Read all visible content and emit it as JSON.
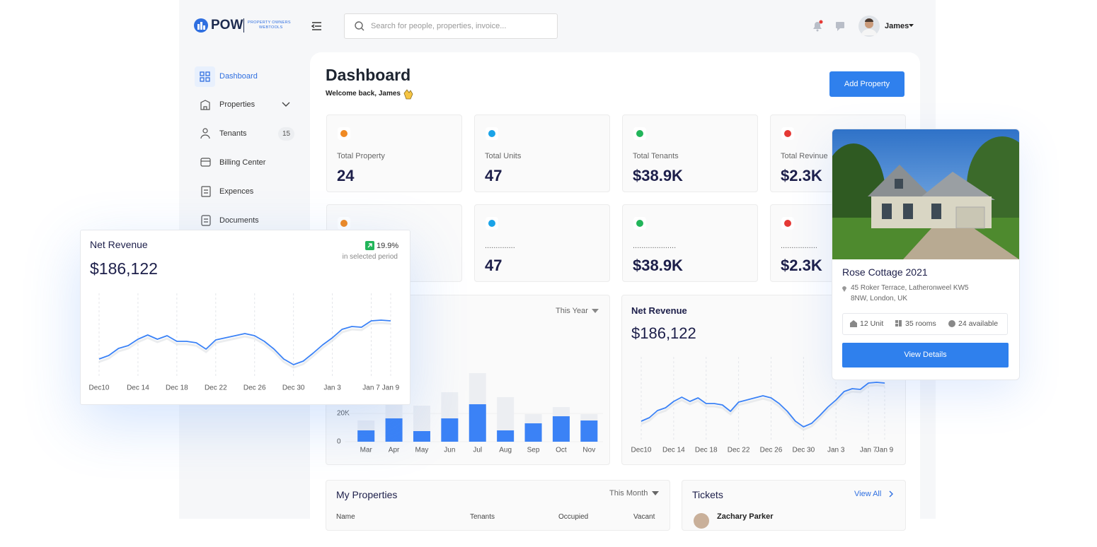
{
  "header": {
    "logo": "POW",
    "logo_tagline": [
      "PROPERTY OWNERS",
      "WEBTOOLS"
    ],
    "search_placeholder": "Search for people, properties, invoice...",
    "user": "James"
  },
  "sidebar": [
    {
      "label": "Dashboard"
    },
    {
      "label": "Properties"
    },
    {
      "label": "Tenants",
      "badge": 15
    },
    {
      "label": "Billing Center"
    },
    {
      "label": "Expences"
    },
    {
      "label": "Documents"
    }
  ],
  "page": {
    "title": "Dashboard",
    "welcome": "Welcome back, James",
    "add_button": "Add Property"
  },
  "stats": [
    {
      "label": "Total Property",
      "value": 24
    },
    {
      "label": "Total Units",
      "value": 47
    },
    {
      "label": "Total Tenants",
      "value": "$38.9K"
    },
    {
      "label": "Total Revinue",
      "value": "$2.3K"
    }
  ],
  "stats_row2": [
    {
      "label": "..............",
      "value": 47
    },
    {
      "label": "....................",
      "value": "$38.9K"
    },
    {
      "label": ".................",
      "value": "$2.3K"
    }
  ],
  "bar_filter": "This Year",
  "chart_data": [
    {
      "type": "bar",
      "categories": [
        "Mar",
        "Apr",
        "May",
        "Jun",
        "Jul",
        "Aug",
        "Sep",
        "Oct",
        "Nov"
      ],
      "series": [
        {
          "color": "#eceef2",
          "values": [
            15000,
            26500,
            25500,
            35000,
            48500,
            31500,
            19500,
            24500,
            19500
          ]
        },
        {
          "color": "#3b82f6",
          "values": [
            8000,
            16500,
            7500,
            16500,
            26500,
            8000,
            13000,
            18000,
            15000
          ]
        }
      ],
      "ylim": [
        0,
        60000
      ],
      "yticks": [
        0,
        {
          "value": 20000,
          "label": "20K"
        }
      ],
      "grid": true
    },
    {
      "type": "line",
      "title": "Net Revenue",
      "total": "$186,122",
      "color": "#3b82f6",
      "ylim": [
        0,
        100
      ],
      "categories": [
        "Dec10",
        null,
        null,
        null,
        "Dec 14",
        null,
        null,
        null,
        "Dec 18",
        null,
        null,
        null,
        "Dec 22",
        null,
        null,
        null,
        "Dec 26",
        null,
        null,
        null,
        "Dec 30",
        null,
        null,
        null,
        "Jan 3",
        null,
        null,
        null,
        "Jan 7",
        null,
        "Jan 9"
      ],
      "values": [
        22,
        27,
        37,
        41,
        50,
        56,
        50,
        55,
        47,
        47,
        45,
        36,
        49,
        52,
        55,
        58,
        55,
        47,
        36,
        22,
        14,
        19,
        30,
        42,
        52,
        64,
        68,
        67,
        76,
        77,
        76
      ]
    },
    {
      "type": "line",
      "title": "Net Revenue",
      "total": "$186,122",
      "change": "19.9%",
      "change_note": "in selected period",
      "color": "#3b82f6",
      "ylim": [
        0,
        100
      ],
      "categories": [
        "Dec10",
        null,
        null,
        null,
        "Dec 14",
        null,
        null,
        null,
        "Dec 18",
        null,
        null,
        null,
        "Dec 22",
        null,
        null,
        null,
        "Dec 26",
        null,
        null,
        null,
        "Dec 30",
        null,
        null,
        null,
        "Jan 3",
        null,
        null,
        null,
        "Jan 7",
        null,
        "Jan 9"
      ],
      "values": [
        22,
        27,
        37,
        41,
        50,
        56,
        50,
        55,
        47,
        47,
        45,
        36,
        49,
        52,
        55,
        58,
        55,
        47,
        36,
        22,
        14,
        19,
        30,
        42,
        52,
        64,
        68,
        67,
        76,
        77,
        76
      ]
    }
  ],
  "property": {
    "title": "Rose Cottage 2021",
    "address": [
      "45 Roker Terrace, Latheronweel KW5",
      "8NW, London, UK"
    ],
    "features": [
      "12 Unit",
      "35 rooms",
      "24 available"
    ],
    "button": "View Details"
  },
  "my_properties": {
    "title": "My Properties",
    "filter": "This Month",
    "columns": [
      "Name",
      "Tenants",
      "Occupied",
      "Vacant"
    ]
  },
  "tickets": {
    "title": "Tickets",
    "view_all": "View All",
    "items": [
      "Zachary Parker"
    ]
  }
}
